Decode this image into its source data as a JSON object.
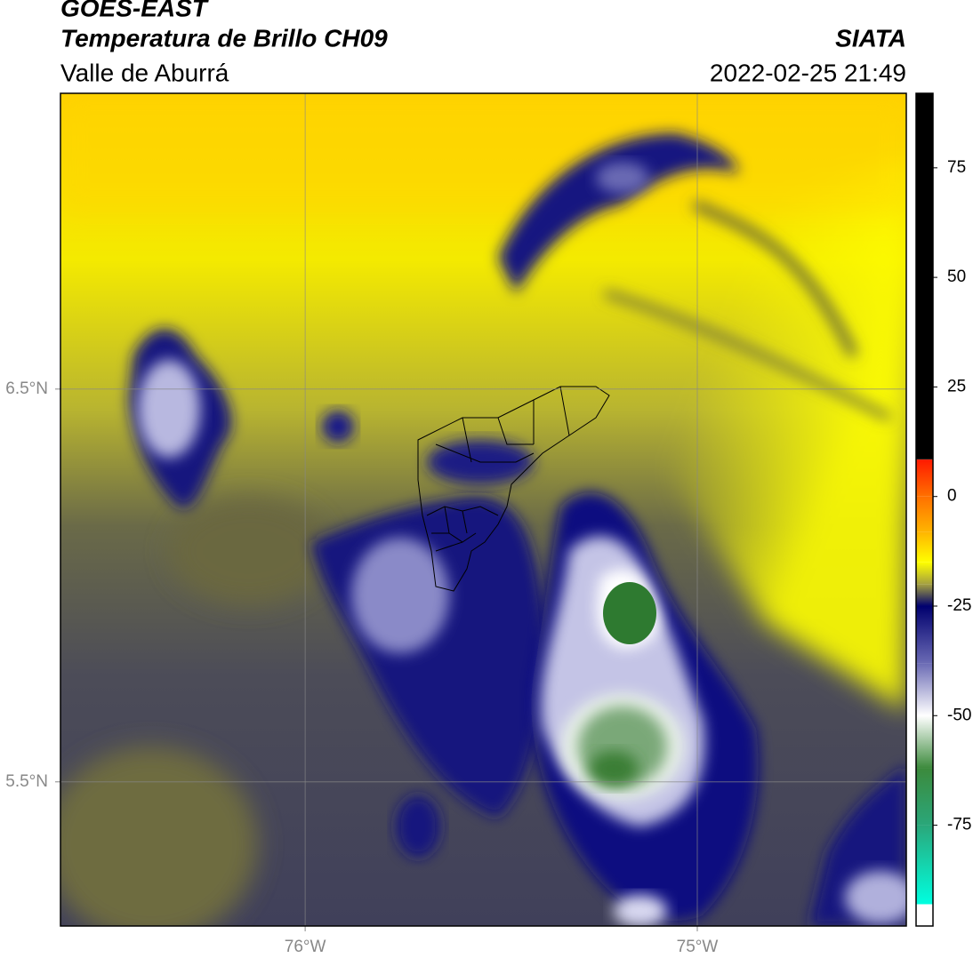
{
  "chart_data": {
    "type": "map",
    "title": "GOES-EAST",
    "subtitle": "Temperatura de Brillo CH09",
    "region": "Valle de Aburrá",
    "source": "SIATA",
    "timestamp": "2022-02-25 21:49",
    "xlim": [
      -76.624,
      -74.467
    ],
    "ylim": [
      5.133,
      7.253
    ],
    "xticks": [
      {
        "value": -76,
        "label": "76°W"
      },
      {
        "value": -75,
        "label": "75°W"
      }
    ],
    "yticks": [
      {
        "value": 5.5,
        "label": "5.5°N"
      },
      {
        "value": 6.5,
        "label": "6.5°N"
      }
    ],
    "grid": true,
    "colorbar": {
      "lim": [
        -98,
        92
      ],
      "ticks": [
        75,
        50,
        25,
        0,
        -25,
        -50,
        -75
      ],
      "stops": [
        {
          "value": 92,
          "color": "#000000"
        },
        {
          "value": 8.5,
          "color": "#000000"
        },
        {
          "value": 8.4,
          "color": "#ff1a00"
        },
        {
          "value": 0,
          "color": "#ff7000"
        },
        {
          "value": -8,
          "color": "#ffb400"
        },
        {
          "value": -15,
          "color": "#ffff00"
        },
        {
          "value": -20,
          "color": "#a4a040"
        },
        {
          "value": -25,
          "color": "#00006e"
        },
        {
          "value": -38,
          "color": "#6a6ab4"
        },
        {
          "value": -50,
          "color": "#ffffff"
        },
        {
          "value": -62,
          "color": "#3c8a3c"
        },
        {
          "value": -75,
          "color": "#2aa77a"
        },
        {
          "value": -93,
          "color": "#00ffe0"
        },
        {
          "value": -93.1,
          "color": "#ffffff"
        },
        {
          "value": -98,
          "color": "#ffffff"
        }
      ]
    }
  }
}
